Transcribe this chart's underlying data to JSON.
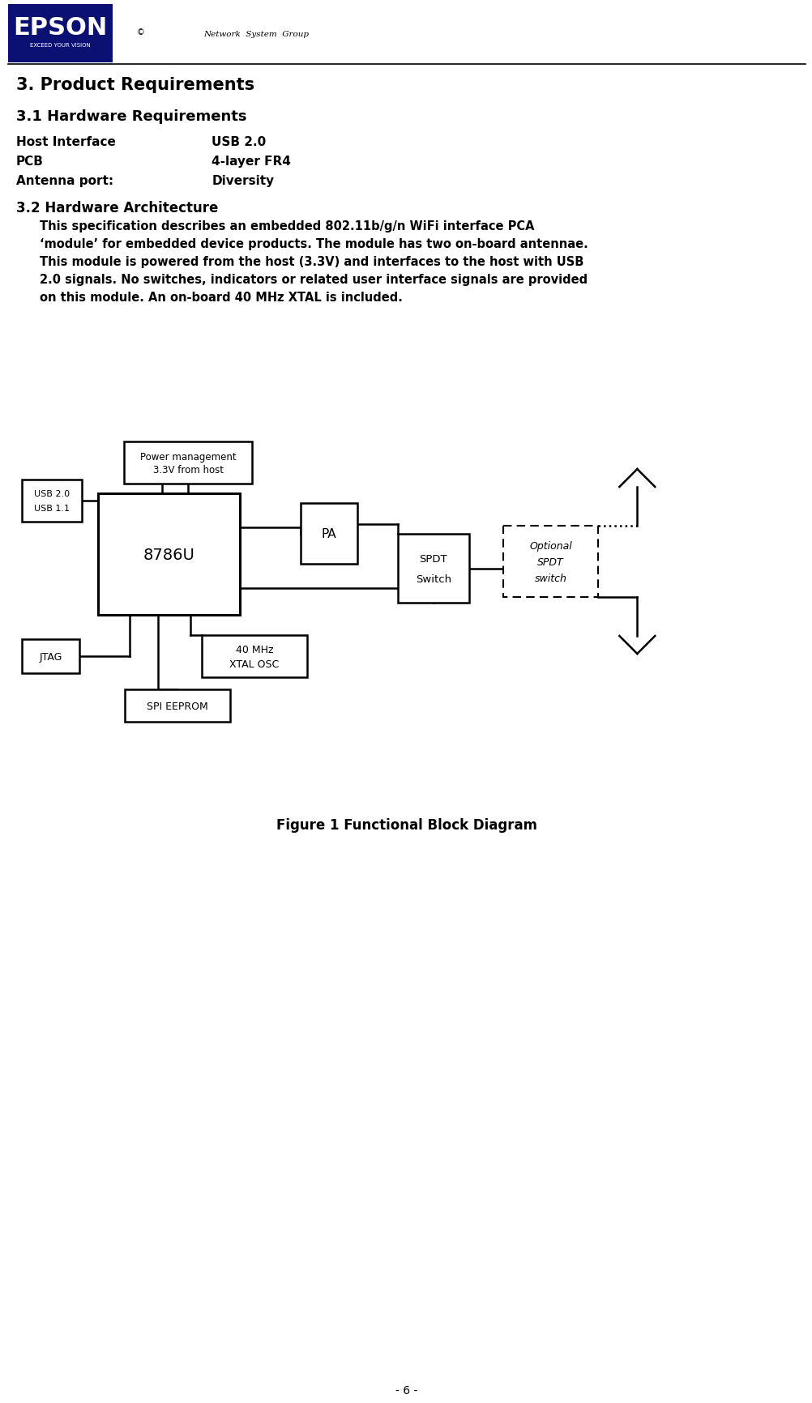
{
  "title": "3. Product Requirements",
  "section_31_title": "3.1 Hardware Requirements",
  "hw_req": [
    [
      "Host Interface",
      "USB 2.0"
    ],
    [
      "PCB",
      "4-layer FR4"
    ],
    [
      "Antenna port:",
      "Diversity"
    ]
  ],
  "section_32_title": "3.2 Hardware Architecture",
  "arch_lines": [
    "This specification describes an embedded 802.11b/g/n WiFi interface PCA",
    "‘module’ for embedded device products. The module has two on-board antennae.",
    "This module is powered from the host (3.3V) and interfaces to the host with USB",
    "2.0 signals. No switches, indicators or related user interface signals are provided",
    "on this module. An on-board 40 MHz XTAL is included."
  ],
  "figure_caption": "Figure 1 Functional Block Diagram",
  "page_number": "- 6 -",
  "epson_bg": "#0a1172",
  "epson_text": "#ffffff",
  "body_bg": "#ffffff",
  "body_text": "#000000"
}
